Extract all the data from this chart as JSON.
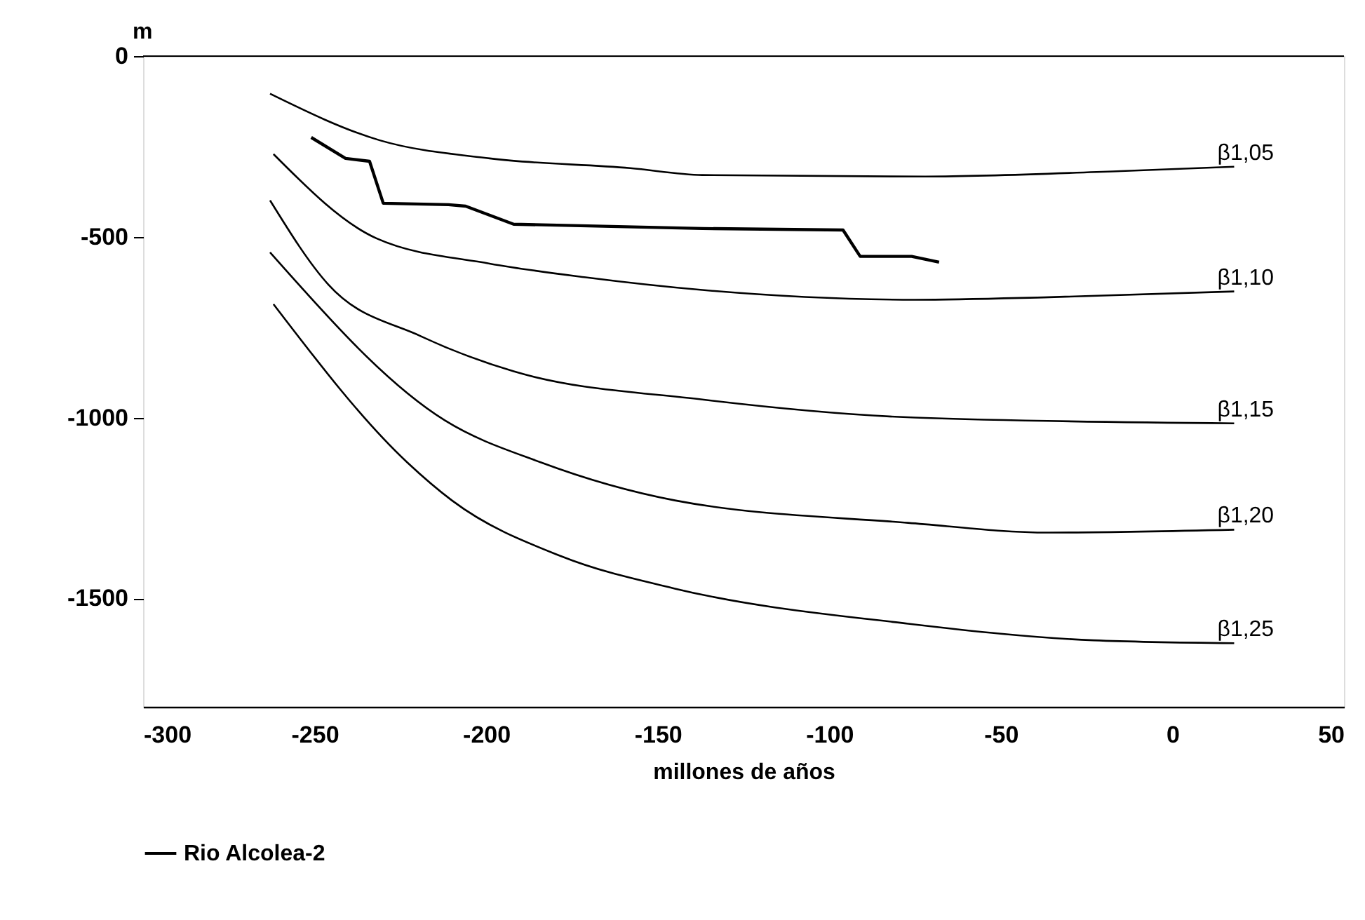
{
  "chart_data": {
    "type": "line",
    "xlabel": "millones de años",
    "ylabel": "m",
    "xlim": [
      -300,
      50
    ],
    "xticks": [
      -300,
      -250,
      -200,
      -150,
      -100,
      -50,
      0,
      50
    ],
    "ylim": [
      -1800,
      0
    ],
    "yticks": [
      0,
      -500,
      -1000,
      -1500
    ],
    "grid": false,
    "legend": "bottom",
    "marker": "none",
    "line_style": "solid",
    "series": [
      {
        "name": "β1,05",
        "color": "#000000",
        "x": [
          -263,
          -231,
          -199,
          -158,
          -137,
          -72,
          -15,
          18
        ],
        "values": [
          -104,
          -233,
          -283,
          -310,
          -329,
          -333,
          -318,
          -306
        ]
      },
      {
        "name": "β1,10",
        "color": "#000000",
        "x": [
          -262,
          -232,
          -199,
          -171,
          -137,
          -75,
          -36,
          18
        ],
        "values": [
          -271,
          -504,
          -574,
          -612,
          -647,
          -674,
          -667,
          -651
        ]
      },
      {
        "name": "β1,15",
        "color": "#000000",
        "x": [
          -263,
          -246,
          -219,
          -192,
          -137,
          -75,
          18
        ],
        "values": [
          -399,
          -632,
          -775,
          -872,
          -950,
          -1000,
          -1016
        ]
      },
      {
        "name": "β1,20",
        "color": "#000000",
        "x": [
          -263,
          -212,
          -184,
          -145,
          -77,
          -36,
          18
        ],
        "values": [
          -543,
          -1008,
          -1124,
          -1229,
          -1291,
          -1318,
          -1310
        ]
      },
      {
        "name": "β1,25",
        "color": "#000000",
        "x": [
          -262,
          -223,
          -210,
          -178,
          -145,
          -77,
          -23,
          18
        ],
        "values": [
          -686,
          -1124,
          -1229,
          -1384,
          -1473,
          -1570,
          -1616,
          -1624
        ]
      },
      {
        "name": "Rio Alcolea-2",
        "color": "#000000",
        "x": [
          -251,
          -241,
          -234,
          -230,
          -211,
          -206,
          -192,
          -137,
          -96,
          -91,
          -76,
          -68
        ],
        "values": [
          -225,
          -283,
          -291,
          -407,
          -411,
          -415,
          -465,
          -477,
          -481,
          -554,
          -554,
          -570
        ]
      }
    ]
  }
}
